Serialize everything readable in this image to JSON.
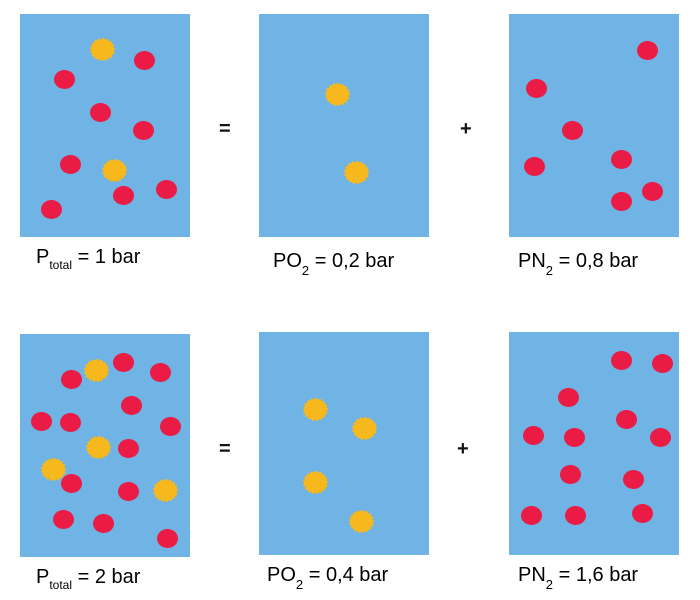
{
  "colors": {
    "container": "#6fb4e4",
    "n2": "#ea1c46",
    "o2": "#f6b81d"
  },
  "operators": {
    "equals": "=",
    "plus": "+"
  },
  "rows": [
    {
      "total": {
        "symbol": "P",
        "subscript": "total",
        "value": "= 1 bar"
      },
      "o2": {
        "symbol": "PO",
        "subscript": "2",
        "value": "= 0,2 bar"
      },
      "n2": {
        "symbol": "PN",
        "subscript": "2",
        "value": "= 0,8 bar"
      }
    },
    {
      "total": {
        "symbol": "P",
        "subscript": "total",
        "value": "= 2 bar"
      },
      "o2": {
        "symbol": "PO",
        "subscript": "2",
        "value": "= 0,4 bar"
      },
      "n2": {
        "symbol": "PN",
        "subscript": "2",
        "value": "= 1,6 bar"
      }
    }
  ]
}
